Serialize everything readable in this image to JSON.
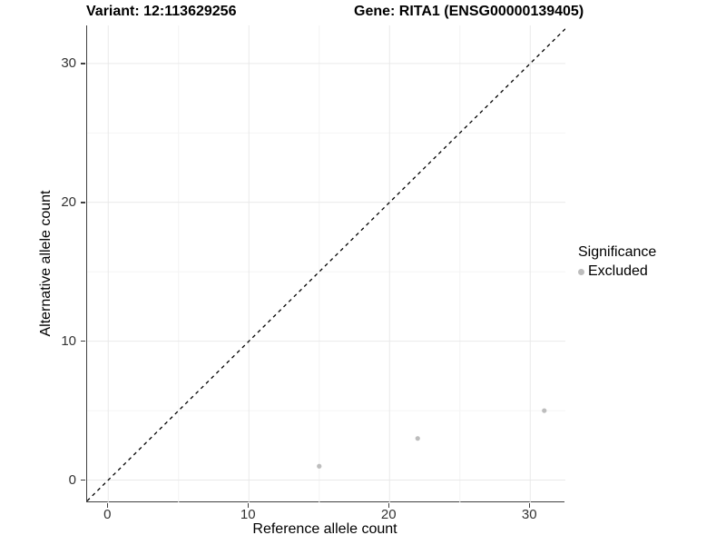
{
  "chart_data": {
    "type": "scatter",
    "title_left": "Variant: 12:113629256",
    "title_right": "Gene: RITA1 (ENSG00000139405)",
    "xlabel": "Reference allele count",
    "ylabel": "Alternative allele count",
    "xlim": [
      -1.5,
      32.5
    ],
    "ylim": [
      -1.6,
      32.74
    ],
    "x_major_ticks": [
      0,
      10,
      20,
      30
    ],
    "y_major_ticks": [
      0,
      10,
      20,
      30
    ],
    "x_minor_gridlines": [
      5,
      15,
      25
    ],
    "y_minor_gridlines": [
      5,
      15,
      25
    ],
    "grid": true,
    "identity_line": {
      "slope": 1,
      "intercept": 0,
      "style": "dashed",
      "color": "#000000"
    },
    "series": [
      {
        "name": "Excluded",
        "color": "#bdbdbd",
        "points": [
          {
            "x": 15,
            "y": 1
          },
          {
            "x": 22,
            "y": 3
          },
          {
            "x": 31,
            "y": 5
          }
        ]
      }
    ],
    "legend": {
      "title": "Significance",
      "position": "right",
      "items": [
        {
          "label": "Excluded",
          "color": "#bdbdbd",
          "marker": "circle"
        }
      ]
    },
    "colors": {
      "grid_major": "#e9e9e9",
      "grid_minor": "#f4f4f4",
      "axis_line": "#404040",
      "point": "#bdbdbd",
      "tick_text": "#333333",
      "title_text": "#000000"
    },
    "point_radius": 2.6
  }
}
